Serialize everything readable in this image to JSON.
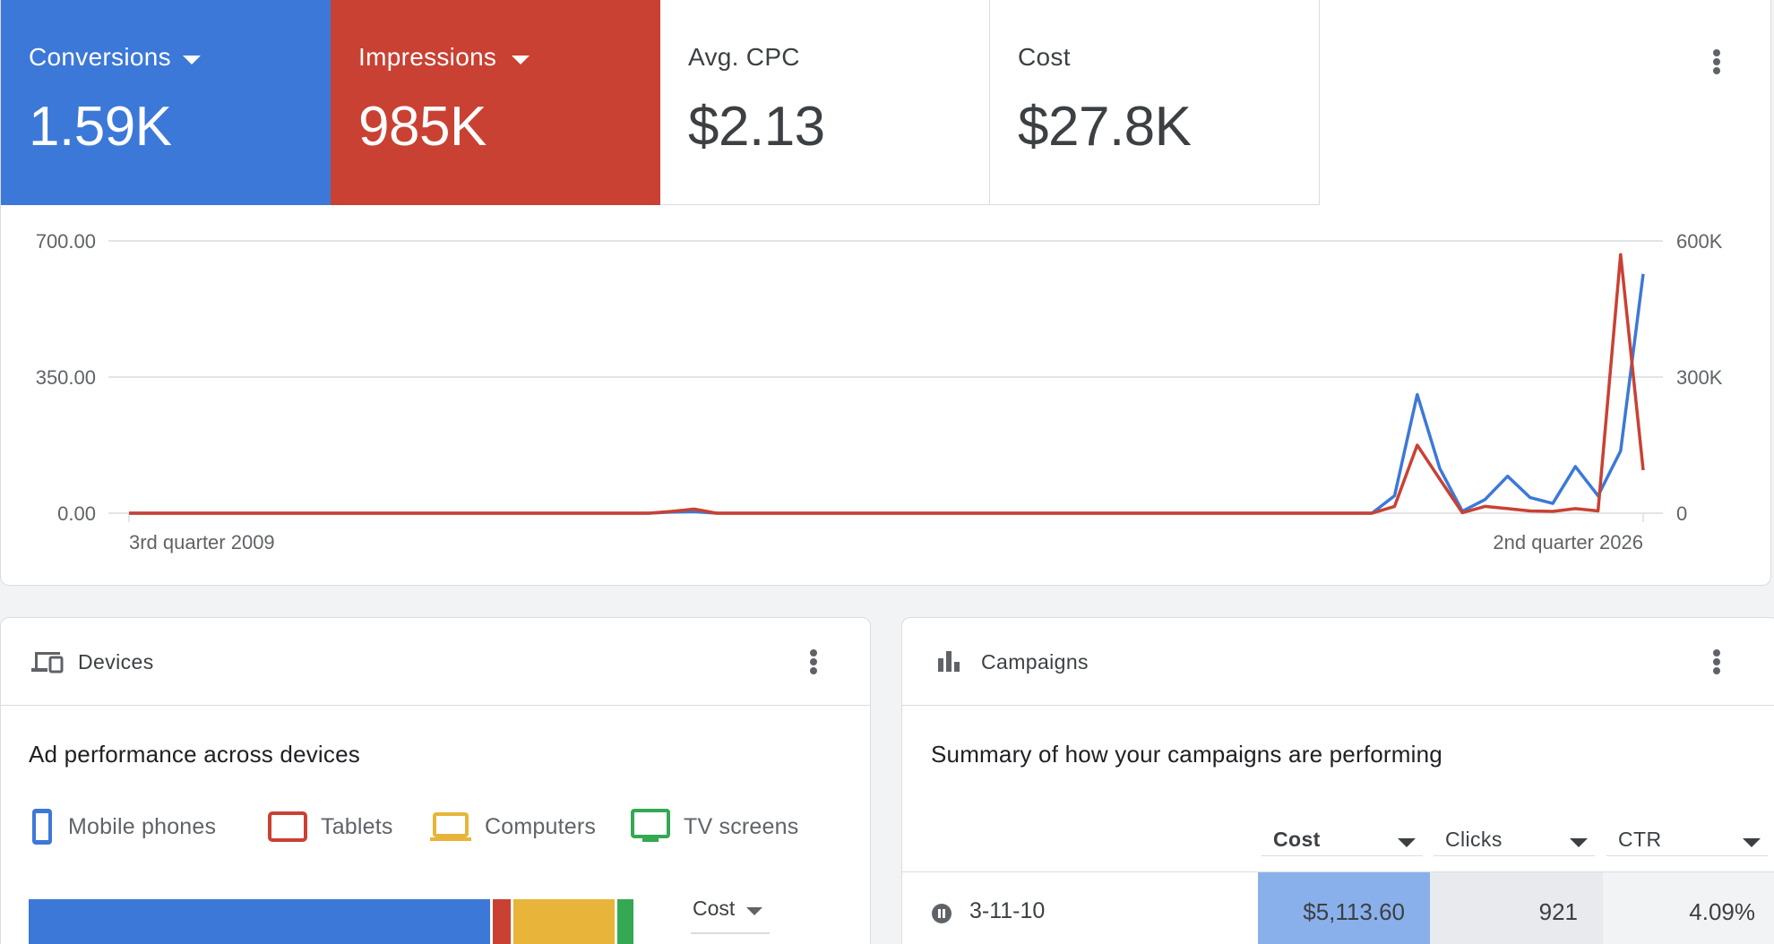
{
  "scorecards": [
    {
      "label": "Conversions",
      "value": "1.59K",
      "has_dropdown": true,
      "color": "#3c78d8"
    },
    {
      "label": "Impressions",
      "value": "985K",
      "has_dropdown": true,
      "color": "#c94133"
    },
    {
      "label": "Avg. CPC",
      "value": "$2.13",
      "has_dropdown": false
    },
    {
      "label": "Cost",
      "value": "$27.8K",
      "has_dropdown": false
    }
  ],
  "overview_menu_icon": "more-vert-icon",
  "chart_data": {
    "type": "line",
    "x_labels_shown": [
      "3rd quarter 2009",
      "2nd quarter 2026"
    ],
    "y_left": {
      "ticks": [
        "700.00",
        "350.00",
        "0.00"
      ],
      "range": [
        0,
        700
      ]
    },
    "y_right": {
      "ticks": [
        "600K",
        "300K",
        "0"
      ],
      "range": [
        0,
        600000
      ]
    },
    "grid": true,
    "series": [
      {
        "name": "Conversions",
        "axis": "left",
        "color": "#3c78d8",
        "values": [
          0,
          0,
          0,
          0,
          0,
          0,
          0,
          0,
          0,
          0,
          0,
          0,
          0,
          0,
          0,
          0,
          0,
          0,
          0,
          0,
          0,
          0,
          0,
          0,
          3,
          4,
          0,
          0,
          0,
          0,
          0,
          0,
          0,
          0,
          0,
          0,
          0,
          0,
          0,
          0,
          0,
          0,
          0,
          0,
          0,
          0,
          0,
          0,
          0,
          0,
          0,
          0,
          0,
          0,
          0,
          0,
          45,
          305,
          115,
          5,
          35,
          95,
          40,
          25,
          120,
          45,
          160,
          615
        ]
      },
      {
        "name": "Impressions",
        "axis": "right",
        "color": "#c94133",
        "values": [
          0,
          0,
          0,
          0,
          0,
          0,
          0,
          0,
          0,
          0,
          0,
          0,
          0,
          0,
          0,
          0,
          0,
          0,
          0,
          0,
          0,
          0,
          0,
          0,
          4000,
          9000,
          0,
          0,
          0,
          0,
          0,
          0,
          0,
          0,
          0,
          0,
          0,
          0,
          0,
          0,
          0,
          0,
          0,
          0,
          0,
          0,
          0,
          0,
          0,
          0,
          0,
          0,
          0,
          0,
          0,
          0,
          15000,
          150000,
          75000,
          1000,
          15000,
          10000,
          5000,
          4000,
          10000,
          5000,
          570000,
          95000
        ]
      }
    ]
  },
  "devices": {
    "title": "Devices",
    "icon": "devices-icon",
    "menu_icon": "more-vert-icon",
    "subtitle": "Ad performance across devices",
    "legend": [
      {
        "label": "Mobile phones",
        "icon": "phone-icon",
        "color": "#3c78d8"
      },
      {
        "label": "Tablets",
        "icon": "tablet-icon",
        "color": "#c94133"
      },
      {
        "label": "Computers",
        "icon": "laptop-icon",
        "color": "#e8b53a"
      },
      {
        "label": "TV screens",
        "icon": "tv-icon",
        "color": "#34a853"
      }
    ],
    "share": [
      0.736,
      0.028,
      0.161,
      0.025
    ],
    "metric_select": "Cost"
  },
  "campaigns": {
    "title": "Campaigns",
    "icon": "bar-chart-icon",
    "menu_icon": "more-vert-icon",
    "subtitle": "Summary of how your campaigns are performing",
    "columns": [
      "Cost",
      "Clicks",
      "CTR"
    ],
    "rows": [
      {
        "status_icon": "paused-icon",
        "name": "3-11-10",
        "cost": "$5,113.60",
        "clicks": "921",
        "ctr": "4.09%"
      }
    ]
  }
}
